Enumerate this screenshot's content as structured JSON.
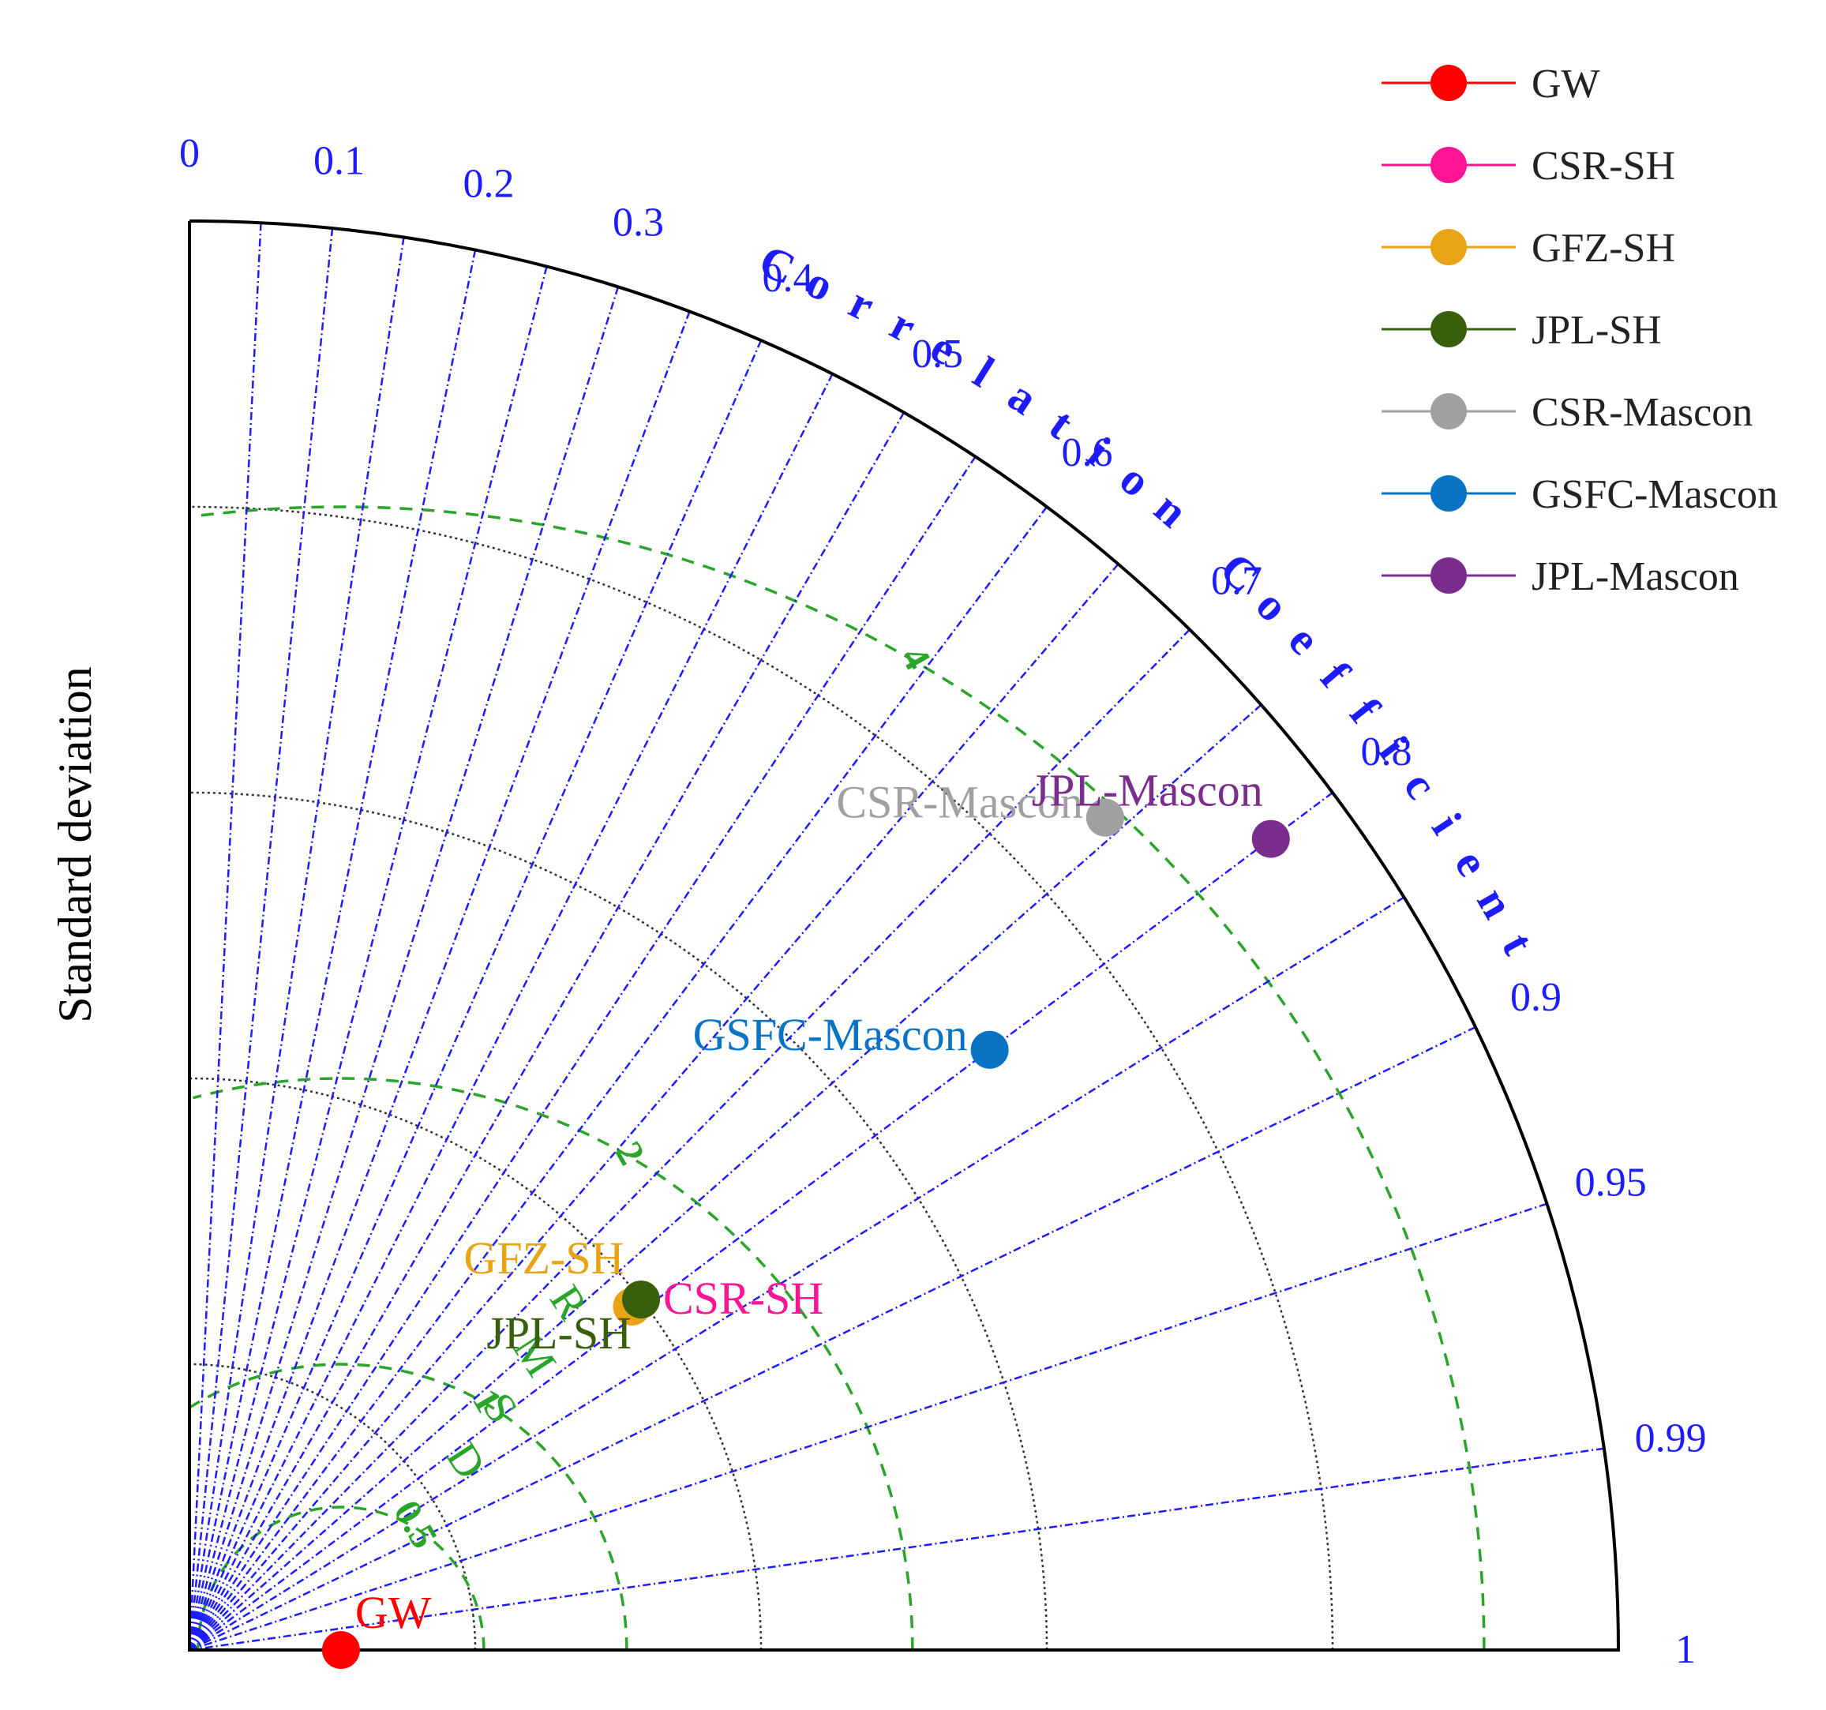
{
  "chart_data": {
    "type": "scatter",
    "subtype": "taylor-diagram",
    "ylabel": "Standard deviation",
    "corr_label": "Correlation Coefficient",
    "rmsd_label": "RMSD",
    "corr_ticks": [
      {
        "r": 0,
        "label": "0"
      },
      {
        "r": 0.1,
        "label": "0.1"
      },
      {
        "r": 0.2,
        "label": "0.2"
      },
      {
        "r": 0.3,
        "label": "0.3"
      },
      {
        "r": 0.4,
        "label": "0.4"
      },
      {
        "r": 0.5,
        "label": "0.5"
      },
      {
        "r": 0.6,
        "label": "0.6"
      },
      {
        "r": 0.7,
        "label": "0.7"
      },
      {
        "r": 0.8,
        "label": "0.8"
      },
      {
        "r": 0.9,
        "label": "0.9"
      },
      {
        "r": 0.95,
        "label": "0.95"
      },
      {
        "r": 0.99,
        "label": "0.99"
      },
      {
        "r": 1,
        "label": "1"
      }
    ],
    "corr_minor": [
      0.05,
      0.15,
      0.25,
      0.35,
      0.45,
      0.55,
      0.65,
      0.75,
      0.85
    ],
    "std_max": 5,
    "std_circles": [
      1,
      2,
      3,
      4
    ],
    "reference_std": 0.53,
    "rmsd_circles": [
      {
        "value": 0.5,
        "label": "0.5"
      },
      {
        "value": 1,
        "label": "1"
      },
      {
        "value": 2,
        "label": "2"
      },
      {
        "value": 4,
        "label": "4"
      }
    ],
    "series": [
      {
        "name": "GW",
        "color": "#ff0000",
        "std": 0.53,
        "corr": 1.0,
        "label_pos": "upper-right"
      },
      {
        "name": "CSR-SH",
        "color": "#ff1493",
        "std": 2.0,
        "corr": 0.79,
        "label_pos": "right"
      },
      {
        "name": "GFZ-SH",
        "color": "#e8a317",
        "std": 1.96,
        "corr": 0.79,
        "label_pos": "upper-left"
      },
      {
        "name": "JPL-SH",
        "color": "#3a5f0b",
        "std": 2.0,
        "corr": 0.79,
        "label_pos": "lower-left"
      },
      {
        "name": "CSR-Mascon",
        "color": "#a0a0a0",
        "std": 4.33,
        "corr": 0.74,
        "label_pos": "left"
      },
      {
        "name": "GSFC-Mascon",
        "color": "#0a74c4",
        "std": 3.5,
        "corr": 0.8,
        "label_pos": "left"
      },
      {
        "name": "JPL-Mascon",
        "color": "#7b2d8e",
        "std": 4.73,
        "corr": 0.8,
        "label_pos": "upper-left"
      }
    ],
    "legend_position": "top-right",
    "grid": true
  }
}
